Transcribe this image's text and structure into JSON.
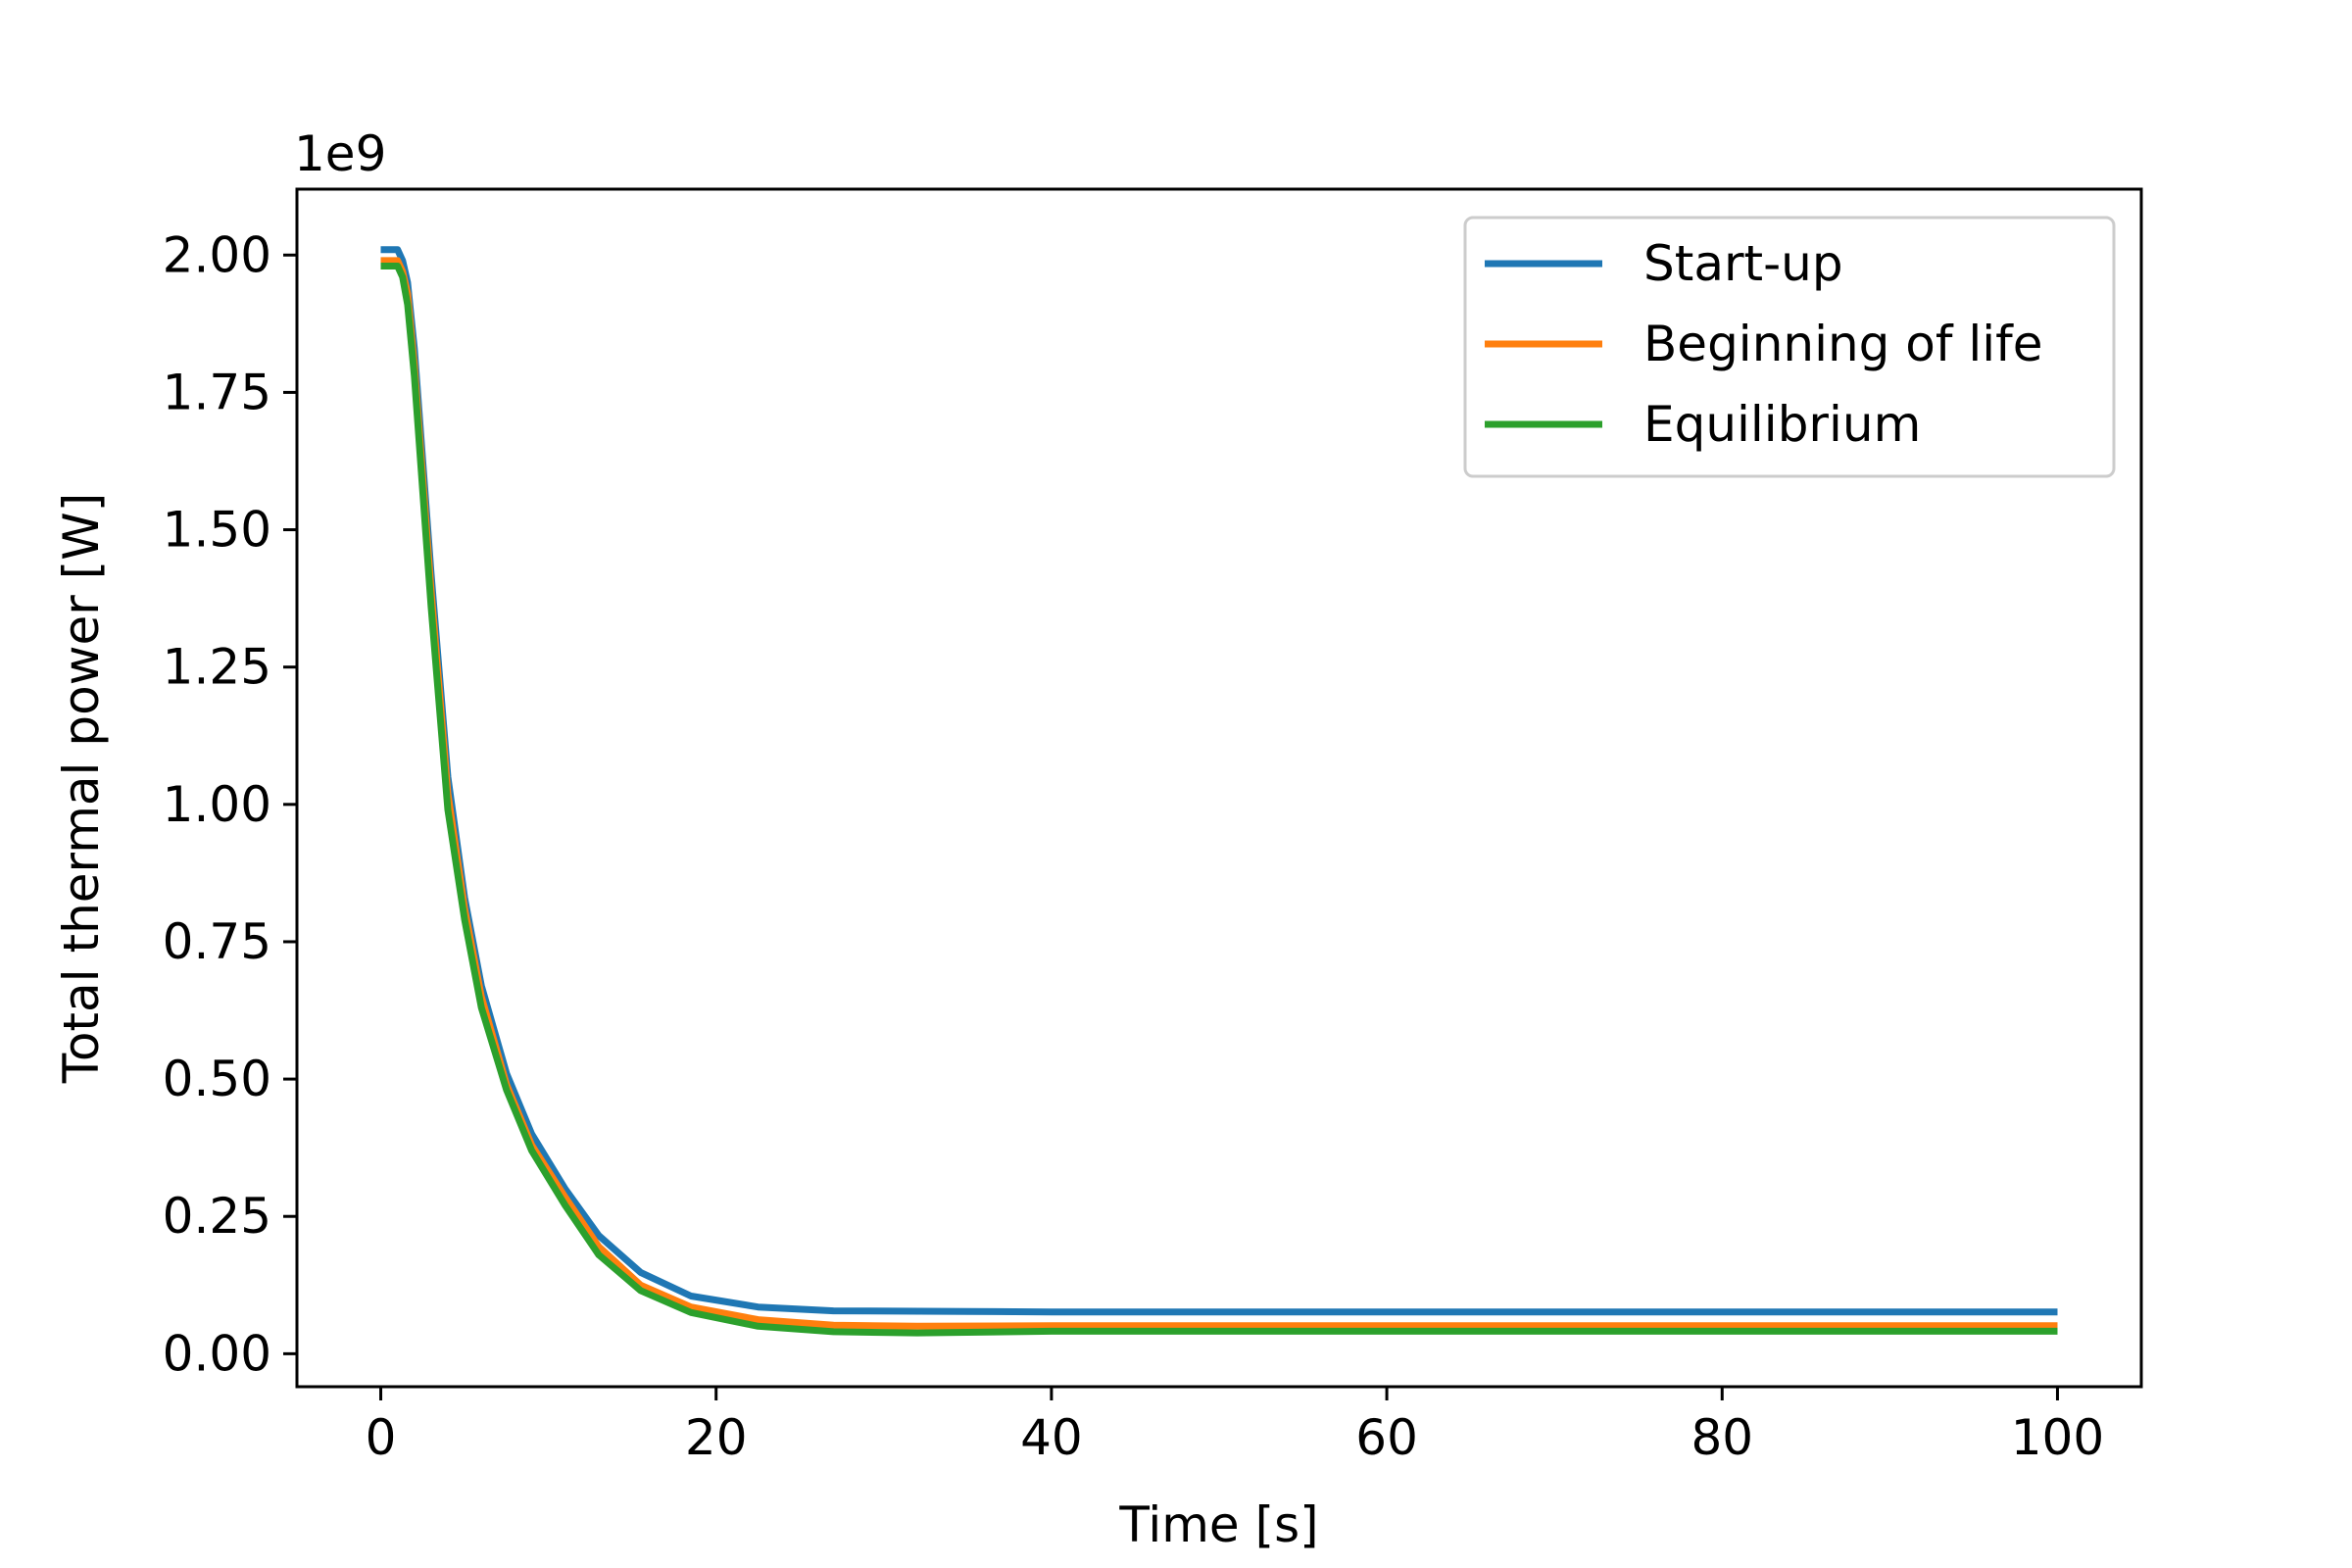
{
  "chart_data": {
    "type": "line",
    "title": "",
    "xlabel": "Time [s]",
    "ylabel": "Total thermal power [W]",
    "y_offset_label": "1e9",
    "xlim": [
      -5,
      105
    ],
    "ylim": [
      -0.06,
      2.12
    ],
    "x_ticks": [
      0,
      20,
      40,
      60,
      80,
      100
    ],
    "x_tick_labels": [
      "0",
      "20",
      "40",
      "60",
      "80",
      "100"
    ],
    "y_ticks": [
      0,
      0.25,
      0.5,
      0.75,
      1.0,
      1.25,
      1.5,
      1.75,
      2.0
    ],
    "y_tick_labels": [
      "0.00",
      "0.25",
      "0.50",
      "0.75",
      "1.00",
      "1.25",
      "1.50",
      "1.75",
      "2.00"
    ],
    "y_scale_note": "values in units of 1e9 W",
    "grid": false,
    "legend_position": "top-right",
    "series": [
      {
        "name": "Start-up",
        "color": "#1f77b4",
        "x": [
          0,
          0.5,
          1,
          1.3,
          1.6,
          2,
          3,
          4,
          5,
          6,
          7.5,
          9,
          11,
          13,
          15.5,
          18.5,
          22.5,
          27,
          35,
          40,
          50,
          60,
          70,
          80,
          90,
          100
        ],
        "y": [
          2.01,
          2.01,
          2.01,
          1.99,
          1.95,
          1.83,
          1.42,
          1.05,
          0.83,
          0.67,
          0.51,
          0.4,
          0.3,
          0.215,
          0.148,
          0.105,
          0.085,
          0.078,
          0.077,
          0.076,
          0.076,
          0.076,
          0.076,
          0.076,
          0.076,
          0.076
        ]
      },
      {
        "name": "Beginning of life",
        "color": "#ff7f0e",
        "x": [
          0,
          0.5,
          1,
          1.3,
          1.6,
          2,
          3,
          4,
          5,
          6,
          7.5,
          9,
          11,
          13,
          15.5,
          18.5,
          22.5,
          27,
          32,
          40,
          50,
          60,
          70,
          80,
          90,
          100
        ],
        "y": [
          1.99,
          1.99,
          1.99,
          1.97,
          1.93,
          1.8,
          1.39,
          1.02,
          0.81,
          0.65,
          0.49,
          0.38,
          0.285,
          0.195,
          0.125,
          0.085,
          0.062,
          0.052,
          0.05,
          0.051,
          0.051,
          0.051,
          0.051,
          0.051,
          0.051,
          0.051
        ]
      },
      {
        "name": "Equilibrium",
        "color": "#2ca02c",
        "x": [
          0,
          0.5,
          1,
          1.3,
          1.6,
          2,
          3,
          4,
          5,
          6,
          7.5,
          9,
          11,
          13,
          15.5,
          18.5,
          22.5,
          27,
          32,
          40,
          50,
          60,
          70,
          80,
          90,
          100
        ],
        "y": [
          1.98,
          1.98,
          1.98,
          1.96,
          1.91,
          1.78,
          1.36,
          0.99,
          0.79,
          0.63,
          0.48,
          0.37,
          0.27,
          0.18,
          0.115,
          0.075,
          0.05,
          0.04,
          0.038,
          0.041,
          0.041,
          0.041,
          0.041,
          0.041,
          0.041,
          0.041
        ]
      }
    ]
  }
}
